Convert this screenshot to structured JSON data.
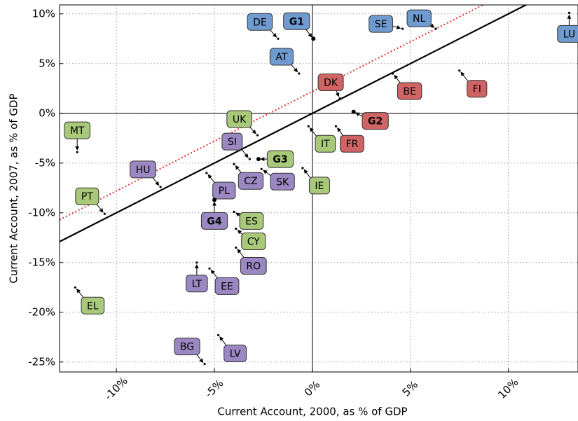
{
  "chart_data": {
    "type": "scatter",
    "xlabel": "Current Account, 2000, as % of GDP",
    "ylabel": "Current Account, 2007, as % of GDP",
    "xlim": [
      -12.9,
      13.55
    ],
    "ylim": [
      -26,
      10.9
    ],
    "xticks": [
      {
        "value": -10,
        "label": "-10%"
      },
      {
        "value": -5,
        "label": "-5%"
      },
      {
        "value": 0,
        "label": "0%"
      },
      {
        "value": 5,
        "label": "5%"
      },
      {
        "value": 10,
        "label": "10%"
      }
    ],
    "yticks": [
      {
        "value": 10,
        "label": "10%"
      },
      {
        "value": 5,
        "label": "5%"
      },
      {
        "value": 0,
        "label": "0%"
      },
      {
        "value": -5,
        "label": "-5%"
      },
      {
        "value": -10,
        "label": "-10%"
      },
      {
        "value": -15,
        "label": "-15%"
      },
      {
        "value": -20,
        "label": "-20%"
      },
      {
        "value": -25,
        "label": "-25%"
      }
    ],
    "grid": true,
    "reference_lines": [
      {
        "slope": 1,
        "intercept": 0,
        "color": "#000000",
        "style": "solid"
      },
      {
        "slope": 1,
        "intercept": 2.2,
        "color": "#e03030",
        "style": "dotted"
      }
    ],
    "series": [
      {
        "color": "#6f9bd1",
        "labels": [
          "DE",
          "G1",
          "AT",
          "SE",
          "NL",
          "LU"
        ],
        "x": [
          -1.75,
          0.05,
          -0.68,
          4.6,
          6.3,
          13.1
        ],
        "values": [
          7.5,
          7.5,
          4.0,
          8.5,
          8.5,
          10.1
        ],
        "bold_index": 1
      },
      {
        "color": "#d06464",
        "labels": [
          "DK",
          "BE",
          "FI",
          "G2",
          "FR"
        ],
        "x": [
          1.4,
          4.1,
          7.5,
          2.1,
          1.2
        ],
        "values": [
          1.5,
          4.0,
          4.3,
          0.15,
          -1.3
        ],
        "bold_index": 3
      },
      {
        "color": "#a8c87a",
        "labels": [
          "IT",
          "IE",
          "UK",
          "G3",
          "MT",
          "PT",
          "ES",
          "CY",
          "EL"
        ],
        "x": [
          -0.2,
          -0.5,
          -2.8,
          -2.75,
          -12.0,
          -10.6,
          -4.0,
          -3.9,
          -12.1
        ],
        "values": [
          -1.3,
          -5.5,
          -2.2,
          -4.6,
          -3.9,
          -10.1,
          -9.9,
          -11.6,
          -17.5
        ],
        "bold_index": 3
      },
      {
        "color": "#9b88c2",
        "labels": [
          "SI",
          "CZ",
          "SK",
          "HU",
          "PL",
          "G4",
          "RO",
          "LT",
          "EE",
          "LV",
          "BG"
        ],
        "x": [
          -3.2,
          -4.0,
          -2.6,
          -7.75,
          -5.4,
          -5.0,
          -3.9,
          -5.9,
          -5.25,
          -4.8,
          -5.5
        ],
        "values": [
          -4.6,
          -5.1,
          -5.6,
          -7.4,
          -6.0,
          -8.7,
          -13.5,
          -15.0,
          -15.6,
          -22.3,
          -25.2
        ],
        "bold_index": 5
      }
    ]
  }
}
